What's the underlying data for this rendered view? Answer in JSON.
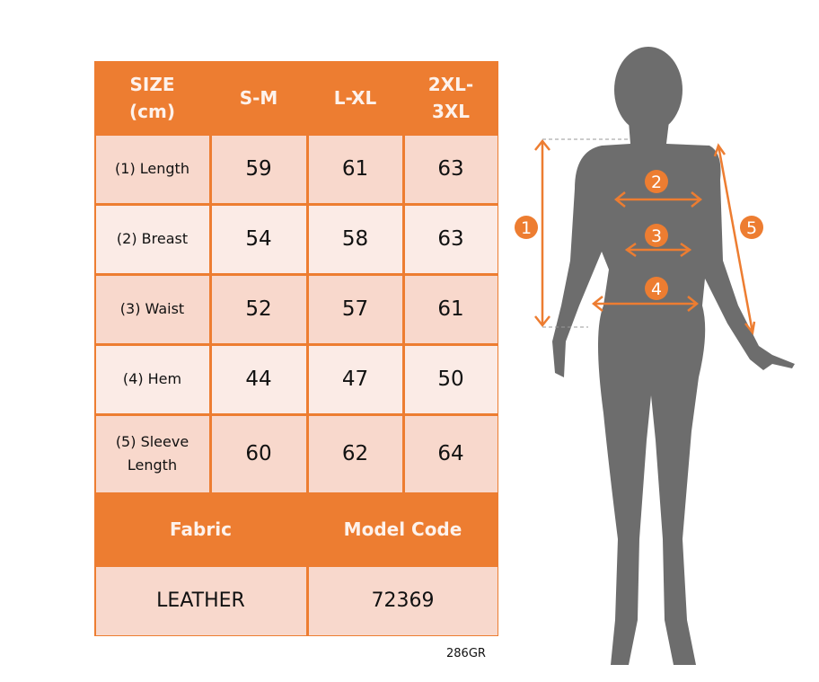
{
  "table": {
    "header": [
      "SIZE\n(cm)",
      "S-M",
      "L-XL",
      "2XL-\n3XL"
    ],
    "header_lines": [
      [
        "SIZE",
        "(cm)"
      ],
      [
        "S-M"
      ],
      [
        "L-XL"
      ],
      [
        "2XL-",
        "3XL"
      ]
    ],
    "rows": [
      {
        "label": [
          "(1) Length"
        ],
        "values": [
          "59",
          "61",
          "63"
        ]
      },
      {
        "label": [
          "(2) Breast"
        ],
        "values": [
          "54",
          "58",
          "63"
        ]
      },
      {
        "label": [
          "(3) Waist"
        ],
        "values": [
          "52",
          "57",
          "61"
        ]
      },
      {
        "label": [
          "(4) Hem"
        ],
        "values": [
          "44",
          "47",
          "50"
        ]
      },
      {
        "label": [
          "(5) Sleeve",
          "Length"
        ],
        "values": [
          "60",
          "62",
          "64"
        ]
      }
    ],
    "footer_headers": [
      "Fabric",
      "Model Code"
    ],
    "footer_values": [
      "LEATHER",
      "72369"
    ]
  },
  "product_code": "286GR",
  "figure": {
    "markers": [
      "1",
      "2",
      "3",
      "4",
      "5"
    ]
  },
  "colors": {
    "accent": "#ED7D31",
    "cell_dark": "#F8D8CC",
    "cell_light": "#FBEBE6",
    "silhouette": "#6D6D6D"
  }
}
